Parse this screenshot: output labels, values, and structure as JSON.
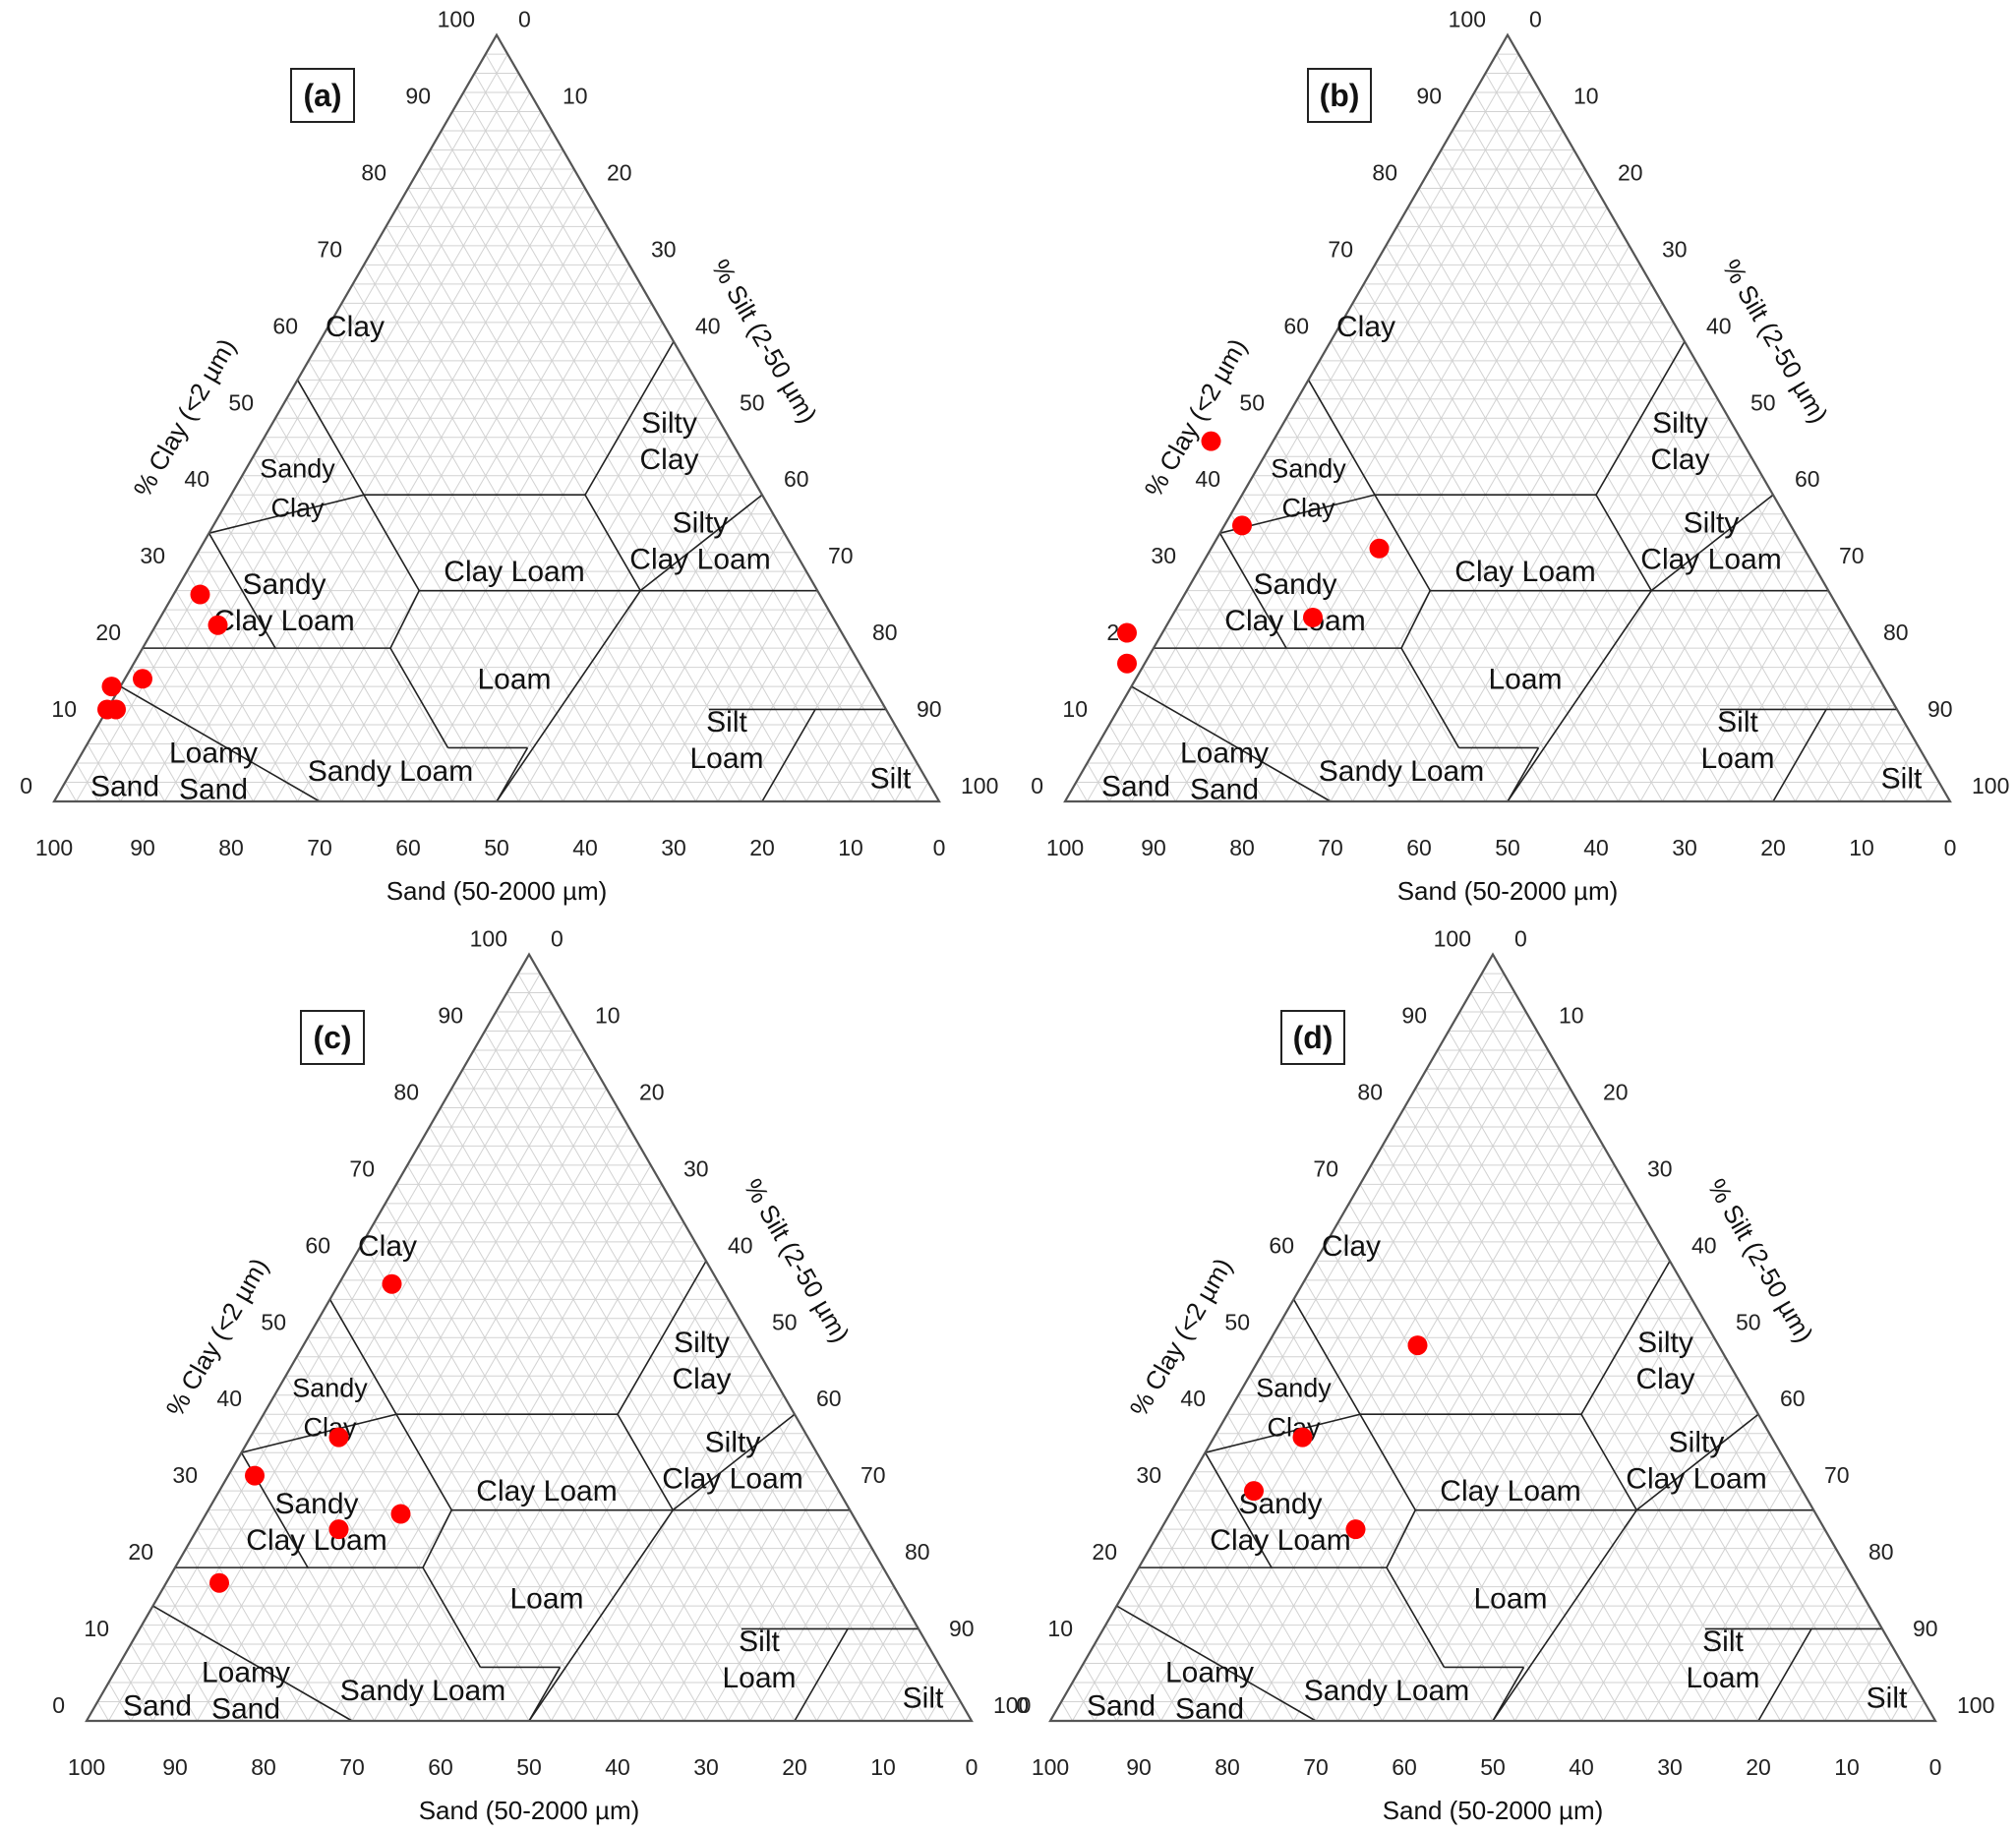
{
  "chart_data": [
    {
      "type": "scatter",
      "panel_label": "(a)",
      "xlabel": "Sand (50-2000 µm)",
      "left_axis_label": "% Clay (<2 µm)",
      "right_axis_label": "% Silt (2-50 µm)",
      "points": [
        {
          "sand": 88,
          "clay": 12
        },
        {
          "sand": 87,
          "clay": 12
        },
        {
          "sand": 86,
          "clay": 15
        },
        {
          "sand": 82,
          "clay": 16
        },
        {
          "sand": 70,
          "clay": 23
        },
        {
          "sand": 70,
          "clay": 27
        }
      ]
    },
    {
      "type": "scatter",
      "panel_label": "(b)",
      "xlabel": "Sand (50-2000 µm)",
      "left_axis_label": "% Clay (<2 µm)",
      "right_axis_label": "% Silt (2-50 µm)",
      "points": [
        {
          "sand": 60,
          "clay": 47
        },
        {
          "sand": 62,
          "clay": 36
        },
        {
          "sand": 48,
          "clay": 33
        },
        {
          "sand": 60,
          "clay": 24
        },
        {
          "sand": 82,
          "clay": 22
        },
        {
          "sand": 84,
          "clay": 18
        }
      ]
    },
    {
      "type": "scatter",
      "panel_label": "(c)",
      "xlabel": "Sand (50-2000 µm)",
      "left_axis_label": "% Clay (<2 µm)",
      "right_axis_label": "% Silt (2-50 µm)",
      "points": [
        {
          "sand": 37,
          "clay": 57
        },
        {
          "sand": 53,
          "clay": 37
        },
        {
          "sand": 65,
          "clay": 32
        },
        {
          "sand": 51,
          "clay": 27
        },
        {
          "sand": 59,
          "clay": 25
        },
        {
          "sand": 76,
          "clay": 18
        }
      ]
    },
    {
      "type": "scatter",
      "panel_label": "(d)",
      "xlabel": "Sand (50-2000 µm)",
      "left_axis_label": "% Clay (<2 µm)",
      "right_axis_label": "% Silt (2-50 µm)",
      "points": [
        {
          "sand": 34,
          "clay": 49
        },
        {
          "sand": 53,
          "clay": 37
        },
        {
          "sand": 62,
          "clay": 30
        },
        {
          "sand": 53,
          "clay": 25
        }
      ]
    }
  ],
  "ticks": [
    "0",
    "10",
    "20",
    "30",
    "40",
    "50",
    "60",
    "70",
    "80",
    "90",
    "100"
  ],
  "regions": [
    {
      "id": "clay",
      "lines": [
        "Clay"
      ],
      "sand": 35,
      "clay": 62
    },
    {
      "id": "sandy-clay",
      "lines": [
        "Sandy",
        "Clay"
      ],
      "sand": 52,
      "clay": 41
    },
    {
      "id": "silty-clay",
      "lines": [
        "Silty",
        "Clay"
      ],
      "sand": 7,
      "clay": 47
    },
    {
      "id": "sandy-clay-loam",
      "lines": [
        "Sandy",
        "Clay Loam"
      ],
      "sand": 61,
      "clay": 26
    },
    {
      "id": "clay-loam",
      "lines": [
        "Clay Loam"
      ],
      "sand": 33,
      "clay": 30
    },
    {
      "id": "silty-clay-loam",
      "lines": [
        "Silty",
        "Clay Loam"
      ],
      "sand": 10,
      "clay": 34
    },
    {
      "id": "loam",
      "lines": [
        "Loam"
      ],
      "sand": 40,
      "clay": 16
    },
    {
      "id": "silt-loam",
      "lines": [
        "Silt",
        "Loam"
      ],
      "sand": 20,
      "clay": 8
    },
    {
      "id": "sandy-loam",
      "lines": [
        "Sandy Loam"
      ],
      "sand": 60,
      "clay": 4
    },
    {
      "id": "loamy-sand",
      "lines": [
        "Loamy",
        "Sand"
      ],
      "sand": 80,
      "clay": 4
    },
    {
      "id": "sand",
      "lines": [
        "Sand"
      ],
      "sand": 91,
      "clay": 2
    },
    {
      "id": "silt",
      "lines": [
        "Silt"
      ],
      "sand": 4,
      "clay": 3
    }
  ],
  "colors": {
    "point": "#ff0000",
    "grid": "#d2d2d2",
    "boundary": "#222222"
  }
}
